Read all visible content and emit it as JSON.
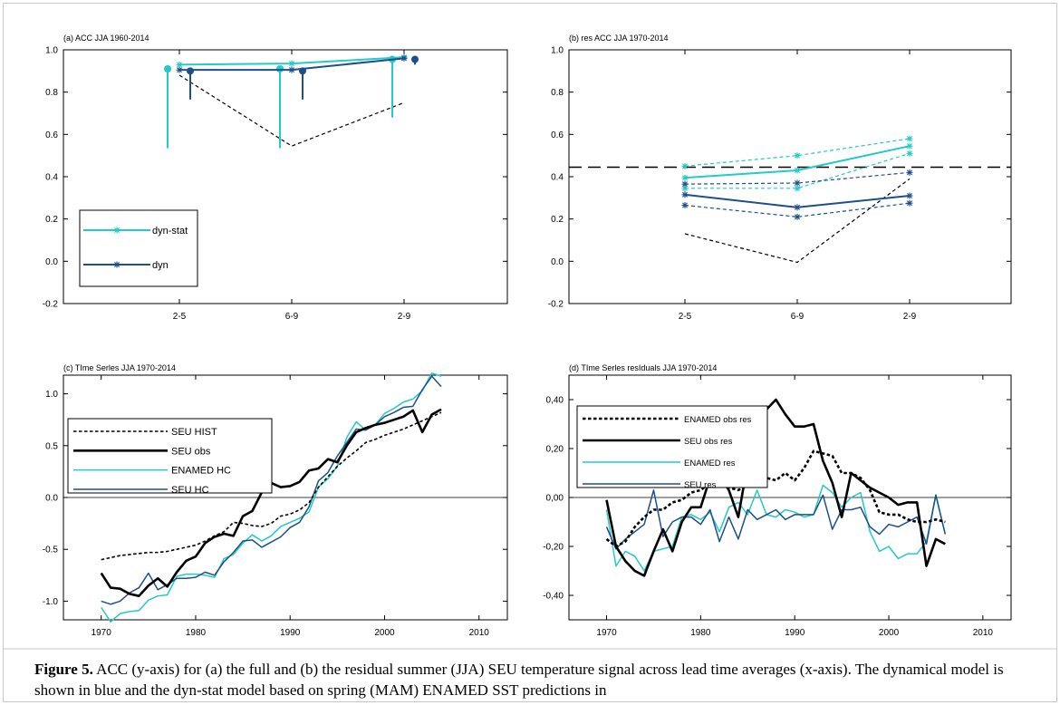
{
  "colors": {
    "cyan": "#22cac8",
    "blue": "#1d4f8b",
    "black": "#000000",
    "axis": "#000000"
  },
  "caption": {
    "label": "Figure 5.",
    "text": "ACC (y-axis) for (a) the full and (b) the residual summer (JJA) SEU temperature signal across lead time averages (x-axis). The dynamical model is shown in blue and the dyn-stat model based on spring (MAM) ENAMED SST predictions in"
  },
  "chart_data": [
    {
      "id": "a",
      "type": "line",
      "title": "(a) ACC JJA 1960-2014",
      "xlabel": "",
      "ylabel": "",
      "categories": [
        "2-5",
        "6-9",
        "2-9"
      ],
      "ylim": [
        -0.2,
        1.0
      ],
      "yticks": [
        "1.0",
        "0.8",
        "0.6",
        "0.4",
        "0.2",
        "0.0",
        "-0.2"
      ],
      "grid": false,
      "legend": {
        "position": "bottom-left",
        "entries": [
          "dyn-stat",
          "dyn"
        ]
      },
      "series": [
        {
          "name": "dyn-stat",
          "values": [
            0.93,
            0.935,
            0.965
          ]
        },
        {
          "name": "dyn",
          "values": [
            0.905,
            0.905,
            0.96
          ]
        }
      ],
      "reference_dashed": {
        "values": [
          0.88,
          0.545,
          0.75
        ]
      },
      "error_bars": [
        {
          "category": "2-5",
          "center": 0.91,
          "low": 0.535,
          "high": 0.91,
          "color": "cyan"
        },
        {
          "category": "2-5",
          "center": 0.9,
          "low": 0.765,
          "high": 0.9,
          "color": "blue"
        },
        {
          "category": "6-9",
          "center": 0.91,
          "low": 0.535,
          "high": 0.91,
          "color": "cyan"
        },
        {
          "category": "6-9",
          "center": 0.9,
          "low": 0.765,
          "high": 0.9,
          "color": "blue"
        },
        {
          "category": "2-9",
          "center": 0.955,
          "low": 0.68,
          "high": 0.955,
          "color": "cyan"
        },
        {
          "category": "2-9",
          "center": 0.955,
          "low": 0.93,
          "high": 0.955,
          "color": "blue"
        }
      ]
    },
    {
      "id": "b",
      "type": "line",
      "title": "(b) res ACC JJA 1970-2014",
      "xlabel": "",
      "ylabel": "",
      "categories": [
        "2-5",
        "6-9",
        "2-9"
      ],
      "ylim": [
        -0.2,
        1.0
      ],
      "yticks": [
        "1.0",
        "0.8",
        "0.6",
        "0.4",
        "0.2",
        "0.0",
        "-0.2"
      ],
      "grid": false,
      "series": [
        {
          "name": "",
          "color": "cyan",
          "style": "solid",
          "values": [
            0.395,
            0.43,
            0.545
          ]
        },
        {
          "name": "",
          "color": "cyan",
          "style": "dashed",
          "values": [
            0.45,
            0.5,
            0.58
          ]
        },
        {
          "name": "",
          "color": "cyan",
          "style": "dashed",
          "values": [
            0.345,
            0.345,
            0.51
          ]
        },
        {
          "name": "",
          "color": "blue",
          "style": "solid",
          "values": [
            0.315,
            0.255,
            0.31
          ]
        },
        {
          "name": "",
          "color": "blue",
          "style": "dashed",
          "values": [
            0.365,
            0.37,
            0.42
          ]
        },
        {
          "name": "",
          "color": "blue",
          "style": "dashed",
          "values": [
            0.265,
            0.21,
            0.275
          ]
        }
      ],
      "reference_dashed": {
        "values": [
          0.13,
          -0.005,
          0.39
        ]
      },
      "threshold": 0.445
    },
    {
      "id": "c",
      "type": "line",
      "title": "(c) TIme Serles JJA 1970-2014",
      "xlabel": "",
      "ylabel": "",
      "xlim": [
        1966,
        2013
      ],
      "xticks": [
        1970,
        1980,
        1990,
        2000,
        2010
      ],
      "ylim": [
        -1.18,
        1.18
      ],
      "yticks": [
        1.0,
        0.5,
        0.0,
        -0.5,
        -1.0
      ],
      "ytick_labels": [
        "1.0",
        "0.5",
        "0.0",
        "-0.5",
        "-1.0"
      ],
      "legend": {
        "position": "top-left",
        "entries": [
          "SEU HIST",
          "SEU obs",
          "ENAMED HC",
          "SEU HC"
        ]
      },
      "x": [
        1970,
        1971,
        1972,
        1973,
        1974,
        1975,
        1976,
        1977,
        1978,
        1979,
        1980,
        1981,
        1982,
        1983,
        1984,
        1985,
        1986,
        1987,
        1988,
        1989,
        1990,
        1991,
        1992,
        1993,
        1994,
        1995,
        1996,
        1997,
        1998,
        1999,
        2000,
        2001,
        2002,
        2003,
        2004,
        2005,
        2006
      ],
      "series": [
        {
          "name": "SEU HIST",
          "style": "dashed",
          "color": "black",
          "values": [
            -0.6,
            -0.58,
            -0.56,
            -0.55,
            -0.54,
            -0.53,
            -0.53,
            -0.52,
            -0.5,
            -0.48,
            -0.46,
            -0.42,
            -0.37,
            -0.33,
            -0.24,
            -0.25,
            -0.27,
            -0.28,
            -0.25,
            -0.18,
            -0.16,
            -0.12,
            -0.05,
            0.1,
            0.2,
            0.3,
            0.38,
            0.45,
            0.53,
            0.56,
            0.6,
            0.63,
            0.66,
            0.7,
            0.74,
            0.78,
            0.82
          ]
        },
        {
          "name": "SEU obs",
          "style": "solid-thick",
          "color": "black",
          "values": [
            -0.73,
            -0.87,
            -0.88,
            -0.93,
            -0.95,
            -0.85,
            -0.78,
            -0.86,
            -0.72,
            -0.61,
            -0.57,
            -0.44,
            -0.38,
            -0.35,
            -0.37,
            -0.18,
            -0.13,
            0.05,
            0.14,
            0.1,
            0.11,
            0.15,
            0.26,
            0.28,
            0.37,
            0.34,
            0.5,
            0.63,
            0.67,
            0.7,
            0.72,
            0.75,
            0.78,
            0.84,
            0.63,
            0.8,
            0.85
          ]
        },
        {
          "name": "ENAMED HC",
          "style": "solid",
          "color": "cyan",
          "values": [
            -1.06,
            -1.2,
            -1.12,
            -1.1,
            -1.09,
            -0.99,
            -0.95,
            -0.94,
            -0.76,
            -0.74,
            -0.74,
            -0.75,
            -0.77,
            -0.59,
            -0.55,
            -0.44,
            -0.36,
            -0.42,
            -0.37,
            -0.28,
            -0.24,
            -0.2,
            -0.14,
            0.1,
            0.18,
            0.3,
            0.58,
            0.73,
            0.65,
            0.7,
            0.81,
            0.86,
            0.92,
            0.95,
            1.03,
            1.2,
            1.17
          ]
        },
        {
          "name": "SEU HC",
          "style": "solid",
          "color": "blue",
          "values": [
            -1.0,
            -1.03,
            -1.0,
            -0.92,
            -0.87,
            -0.73,
            -0.89,
            -0.84,
            -0.78,
            -0.78,
            -0.77,
            -0.72,
            -0.75,
            -0.62,
            -0.53,
            -0.42,
            -0.41,
            -0.48,
            -0.43,
            -0.38,
            -0.29,
            -0.24,
            -0.09,
            0.16,
            0.24,
            0.4,
            0.53,
            0.66,
            0.65,
            0.7,
            0.78,
            0.82,
            0.87,
            0.88,
            1.04,
            1.17,
            1.07
          ]
        }
      ]
    },
    {
      "id": "d",
      "type": "line",
      "title": "(d) TIme Serles resIduals JJA 1970-2014",
      "xlabel": "",
      "ylabel": "",
      "xlim": [
        1966,
        2013
      ],
      "xticks": [
        1970,
        1980,
        1990,
        2000,
        2010
      ],
      "ylim": [
        -0.5,
        0.5
      ],
      "yticks": [
        0.4,
        0.2,
        0.0,
        -0.2,
        -0.4
      ],
      "ytick_labels": [
        "0,40",
        "0,20",
        "0,00",
        "-0,20",
        "-0,40"
      ],
      "legend": {
        "position": "top-left",
        "entries": [
          "ENAMED obs res",
          "SEU obs res",
          "ENAMED res",
          "SEU res"
        ]
      },
      "x": [
        1970,
        1971,
        1972,
        1973,
        1974,
        1975,
        1976,
        1977,
        1978,
        1979,
        1980,
        1981,
        1982,
        1983,
        1984,
        1985,
        1986,
        1987,
        1988,
        1989,
        1990,
        1991,
        1992,
        1993,
        1994,
        1995,
        1996,
        1997,
        1998,
        1999,
        2000,
        2001,
        2002,
        2003,
        2004,
        2005,
        2006
      ],
      "series": [
        {
          "name": "ENAMED obs res",
          "style": "dashed-thick",
          "color": "black",
          "values": [
            -0.17,
            -0.2,
            -0.18,
            -0.12,
            -0.08,
            -0.05,
            -0.05,
            -0.02,
            -0.01,
            0.02,
            0.03,
            0.06,
            0.08,
            0.04,
            0.03,
            0.05,
            0.06,
            0.08,
            0.07,
            0.1,
            0.07,
            0.12,
            0.19,
            0.18,
            0.17,
            0.1,
            0.1,
            0.08,
            0.03,
            -0.06,
            -0.07,
            -0.07,
            -0.09,
            -0.1,
            -0.1,
            -0.09,
            -0.1
          ]
        },
        {
          "name": "SEU obs res",
          "style": "solid-thick",
          "color": "black",
          "values": [
            -0.01,
            -0.2,
            -0.26,
            -0.3,
            -0.32,
            -0.22,
            -0.13,
            -0.22,
            -0.1,
            -0.04,
            -0.04,
            0.08,
            0.09,
            0.03,
            -0.08,
            0.14,
            0.22,
            0.36,
            0.4,
            0.34,
            0.29,
            0.29,
            0.3,
            0.15,
            0.06,
            -0.08,
            0.1,
            0.07,
            0.04,
            0.02,
            0.0,
            -0.03,
            -0.02,
            -0.02,
            -0.28,
            -0.17,
            -0.19
          ]
        },
        {
          "name": "ENAMED res",
          "style": "solid",
          "color": "cyan",
          "values": [
            -0.05,
            -0.28,
            -0.22,
            -0.24,
            -0.3,
            -0.22,
            -0.21,
            -0.2,
            -0.08,
            -0.07,
            -0.09,
            -0.06,
            -0.14,
            -0.04,
            -0.02,
            -0.07,
            0.03,
            -0.07,
            -0.08,
            -0.05,
            -0.06,
            -0.08,
            -0.07,
            0.05,
            0.02,
            -0.04,
            0.0,
            0.02,
            -0.14,
            -0.22,
            -0.2,
            -0.25,
            -0.23,
            -0.23,
            -0.18,
            0.01,
            -0.15
          ]
        },
        {
          "name": "SEU res",
          "style": "solid",
          "color": "blue",
          "values": [
            -0.12,
            -0.21,
            -0.17,
            -0.14,
            -0.11,
            0.03,
            -0.16,
            -0.1,
            -0.08,
            -0.08,
            -0.11,
            -0.05,
            -0.18,
            -0.08,
            -0.17,
            -0.05,
            -0.09,
            -0.07,
            -0.05,
            -0.09,
            -0.07,
            -0.07,
            -0.07,
            0.01,
            -0.13,
            -0.05,
            -0.05,
            -0.04,
            -0.12,
            -0.15,
            -0.11,
            -0.12,
            -0.1,
            -0.08,
            -0.19,
            0.01,
            -0.15
          ]
        }
      ]
    }
  ]
}
